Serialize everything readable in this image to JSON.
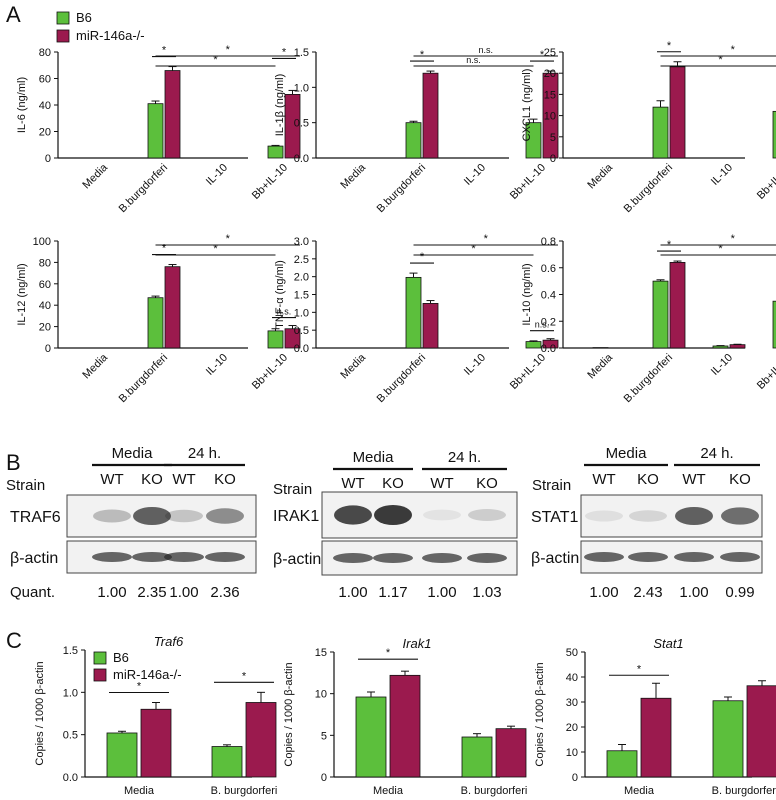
{
  "colors": {
    "b6": "#5cbf3c",
    "ko": "#9b1a4e",
    "ink": "#111111",
    "blot_bg": "#f2f2f2"
  },
  "panel_labels": {
    "a": "A",
    "b": "B",
    "c": "C"
  },
  "legend": {
    "b6": "B6",
    "ko": "miR-146a-/-"
  },
  "sig": {
    "star": "*",
    "ns": "n.s."
  },
  "chart_data": [
    {
      "id": "il6",
      "type": "bar",
      "ylabel": "IL-6 (ng/ml)",
      "categories": [
        "Media",
        "B.burgdorferi",
        "IL-10",
        "Bb+IL-10"
      ],
      "series": [
        {
          "name": "B6",
          "values": [
            0,
            41,
            0,
            9
          ],
          "errors": [
            0,
            2,
            0,
            0.5
          ]
        },
        {
          "name": "miR-146a-/-",
          "values": [
            0,
            66,
            0,
            48
          ],
          "errors": [
            0,
            3,
            0,
            3
          ]
        }
      ],
      "ylim": [
        0,
        80
      ],
      "yticks": [
        "0",
        "20",
        "40",
        "60",
        "80"
      ],
      "brackets": [
        {
          "from": 1,
          "to": 1,
          "label": "*"
        },
        {
          "from": 3,
          "to": 3,
          "label": "*"
        },
        {
          "from": 1,
          "to": 3,
          "label": "*"
        },
        {
          "from": 1,
          "to": 3,
          "label": "*"
        }
      ]
    },
    {
      "id": "il1b",
      "type": "bar",
      "ylabel": "IL-1β (ng/ml)",
      "categories": [
        "Media",
        "B.burgdorferi",
        "IL-10",
        "Bb+IL-10"
      ],
      "series": [
        {
          "name": "B6",
          "values": [
            0,
            0.5,
            0,
            0.5
          ],
          "errors": [
            0,
            0.02,
            0,
            0.05
          ]
        },
        {
          "name": "miR-146a-/-",
          "values": [
            0,
            1.2,
            0,
            1.2
          ],
          "errors": [
            0,
            0.03,
            0,
            0.03
          ]
        }
      ],
      "ylim": [
        0,
        1.5
      ],
      "yticks": [
        "0.0",
        "0.5",
        "1.0",
        "1.5"
      ],
      "brackets": [
        {
          "from": 1,
          "to": 1,
          "label": "*"
        },
        {
          "from": 3,
          "to": 3,
          "label": "*"
        },
        {
          "from": 1,
          "to": 3,
          "label": "n.s."
        },
        {
          "from": 1,
          "to": 3,
          "label": "n.s."
        }
      ]
    },
    {
      "id": "cxcl1",
      "type": "bar",
      "ylabel": "CXCL1 (ng/ml)",
      "categories": [
        "Media",
        "B.burgdorferi",
        "IL-10",
        "Bb+IL-10"
      ],
      "series": [
        {
          "name": "B6",
          "values": [
            0,
            12,
            0,
            11
          ],
          "errors": [
            0,
            1.5,
            0,
            0.7
          ]
        },
        {
          "name": "miR-146a-/-",
          "values": [
            0,
            21.5,
            0,
            18.5
          ],
          "errors": [
            0,
            1.2,
            0,
            0.3
          ]
        }
      ],
      "ylim": [
        0,
        25
      ],
      "yticks": [
        "0",
        "5",
        "10",
        "15",
        "20",
        "25"
      ],
      "brackets": [
        {
          "from": 1,
          "to": 1,
          "label": "*"
        },
        {
          "from": 3,
          "to": 3,
          "label": "*"
        },
        {
          "from": 1,
          "to": 3,
          "label": "*"
        },
        {
          "from": 1,
          "to": 3,
          "label": "*"
        }
      ]
    },
    {
      "id": "il12",
      "type": "bar",
      "ylabel": "IL-12 (ng/ml)",
      "categories": [
        "Media",
        "B.burgdorferi",
        "IL-10",
        "Bb+IL-10"
      ],
      "series": [
        {
          "name": "B6",
          "values": [
            0,
            47,
            0,
            16
          ],
          "errors": [
            0,
            1.5,
            0,
            2
          ]
        },
        {
          "name": "miR-146a-/-",
          "values": [
            0,
            76,
            0,
            18
          ],
          "errors": [
            0,
            2,
            0,
            3
          ]
        }
      ],
      "ylim": [
        0,
        100
      ],
      "yticks": [
        "0",
        "20",
        "40",
        "60",
        "80",
        "100"
      ],
      "brackets": [
        {
          "from": 1,
          "to": 1,
          "label": "*"
        },
        {
          "from": 3,
          "to": 3,
          "label": "n.s."
        },
        {
          "from": 1,
          "to": 3,
          "label": "*"
        },
        {
          "from": 1,
          "to": 3,
          "label": "*"
        }
      ]
    },
    {
      "id": "tnf",
      "type": "bar",
      "ylabel": "TNF-α (ng/ml)",
      "categories": [
        "Media",
        "B.burgdorferi",
        "IL-10",
        "Bb+IL-10"
      ],
      "series": [
        {
          "name": "B6",
          "values": [
            0,
            1.98,
            0,
            0.18
          ],
          "errors": [
            0,
            0.12,
            0,
            0.02
          ]
        },
        {
          "name": "miR-146a-/-",
          "values": [
            0,
            1.25,
            0,
            0.22
          ],
          "errors": [
            0,
            0.08,
            0,
            0.04
          ]
        }
      ],
      "ylim": [
        0,
        3.0
      ],
      "yticks": [
        "0.0",
        "0.5",
        "1.0",
        "1.5",
        "2.0",
        "2.5",
        "3.0"
      ],
      "brackets": [
        {
          "from": 1,
          "to": 1,
          "label": "*"
        },
        {
          "from": 3,
          "to": 3,
          "label": "n.s."
        },
        {
          "from": 1,
          "to": 3,
          "label": "*"
        },
        {
          "from": 1,
          "to": 3,
          "label": "*"
        }
      ]
    },
    {
      "id": "il10",
      "type": "bar",
      "ylabel": "IL-10 (ng/ml)",
      "categories": [
        "Media",
        "B.burgdorferi",
        "IL-10",
        "Bb+IL-10"
      ],
      "series": [
        {
          "name": "B6",
          "values": [
            0.003,
            0.5,
            0.015,
            0.35
          ],
          "errors": [
            0,
            0.01,
            0.003,
            0.005
          ]
        },
        {
          "name": "miR-146a-/-",
          "values": [
            0,
            0.64,
            0.025,
            0.34
          ],
          "errors": [
            0,
            0.01,
            0.003,
            0.005
          ]
        }
      ],
      "ylim": [
        0,
        0.8
      ],
      "yticks": [
        "0.0",
        "0.2",
        "0.4",
        "0.6",
        "0.8"
      ],
      "brackets": [
        {
          "from": 1,
          "to": 1,
          "label": "*"
        },
        {
          "from": 3,
          "to": 3,
          "label": "n.s."
        },
        {
          "from": 1,
          "to": 3,
          "label": "*"
        },
        {
          "from": 1,
          "to": 3,
          "label": "*"
        }
      ]
    },
    {
      "id": "traf6",
      "type": "bar",
      "title": "Traf6",
      "ylabel": "Copies / 1000 β-actin",
      "categories": [
        "Media",
        "B. burgdorferi"
      ],
      "series": [
        {
          "name": "B6",
          "values": [
            0.52,
            0.36
          ],
          "errors": [
            0.02,
            0.02
          ]
        },
        {
          "name": "miR-146a-/-",
          "values": [
            0.8,
            0.88
          ],
          "errors": [
            0.08,
            0.12
          ]
        }
      ],
      "ylim": [
        0,
        1.5
      ],
      "yticks": [
        "0.0",
        "0.5",
        "1.0",
        "1.5"
      ],
      "brackets": [
        {
          "from": 0,
          "to": 0,
          "label": "*"
        },
        {
          "from": 1,
          "to": 1,
          "label": "*"
        }
      ]
    },
    {
      "id": "irak1",
      "type": "bar",
      "title": "Irak1",
      "ylabel": "Copies / 1000 β-actin",
      "categories": [
        "Media",
        "B. burgdorferi"
      ],
      "series": [
        {
          "name": "B6",
          "values": [
            9.6,
            4.8
          ],
          "errors": [
            0.6,
            0.4
          ]
        },
        {
          "name": "miR-146a-/-",
          "values": [
            12.2,
            5.8
          ],
          "errors": [
            0.5,
            0.3
          ]
        }
      ],
      "ylim": [
        0,
        15
      ],
      "yticks": [
        "0",
        "5",
        "10",
        "15"
      ],
      "brackets": [
        {
          "from": 0,
          "to": 0,
          "label": "*"
        }
      ]
    },
    {
      "id": "stat1",
      "type": "bar",
      "title": "Stat1",
      "ylabel": "Copies / 1000 β-actin",
      "categories": [
        "Media",
        "B. burgdorferi"
      ],
      "series": [
        {
          "name": "B6",
          "values": [
            10.5,
            30.5
          ],
          "errors": [
            2.5,
            1.5
          ]
        },
        {
          "name": "miR-146a-/-",
          "values": [
            31.5,
            36.5
          ],
          "errors": [
            6,
            2
          ]
        }
      ],
      "ylim": [
        0,
        50
      ],
      "yticks": [
        "0",
        "10",
        "20",
        "30",
        "40",
        "50"
      ],
      "brackets": [
        {
          "from": 0,
          "to": 0,
          "label": "*"
        }
      ]
    }
  ],
  "blots": {
    "row_label": "Strain",
    "group_labels": [
      "Media",
      "24 h."
    ],
    "lane_labels": [
      "WT",
      "KO",
      "WT",
      "KO"
    ],
    "loading_label": "β-actin",
    "quant_label": "Quant.",
    "panels": [
      {
        "protein": "TRAF6",
        "intensity": [
          0.3,
          0.8,
          0.25,
          0.55
        ],
        "quant": [
          "1.00",
          "2.35",
          "1.00",
          "2.36"
        ]
      },
      {
        "protein": "IRAK1",
        "intensity": [
          0.92,
          1.0,
          0.08,
          0.2
        ],
        "quant": [
          "1.00",
          "1.17",
          "1.00",
          "1.03"
        ]
      },
      {
        "protein": "STAT1",
        "intensity": [
          0.1,
          0.15,
          0.8,
          0.72
        ],
        "quant": [
          "1.00",
          "2.43",
          "1.00",
          "0.99"
        ]
      }
    ]
  }
}
